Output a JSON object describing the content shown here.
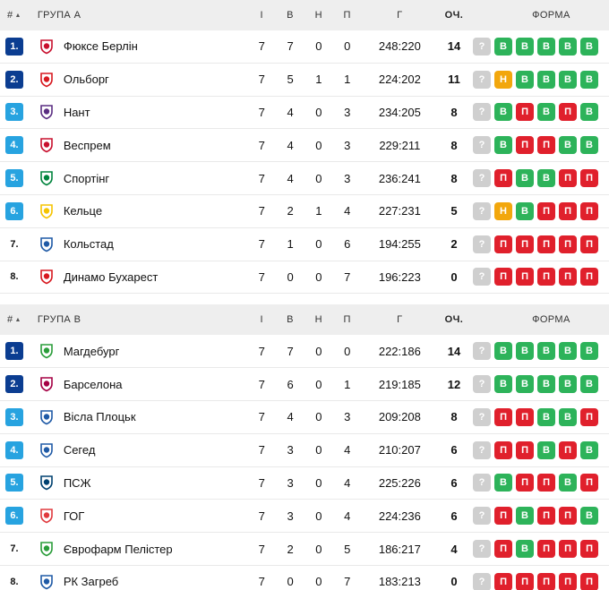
{
  "columns": {
    "pos": "#",
    "played": "І",
    "wins": "В",
    "draws": "Н",
    "losses": "П",
    "goals": "Г",
    "points": "ОЧ.",
    "form": "ФОРМА"
  },
  "groups": [
    {
      "title": "ГРУПА А",
      "rows": [
        {
          "pos": "1.",
          "style": "dark",
          "team": "Фюксе Берлін",
          "logo": "fuchse-logo",
          "logo_color": "#c8102e",
          "p": "7",
          "w": "7",
          "d": "0",
          "l": "0",
          "g": "248:220",
          "pts": "14",
          "form": [
            "?",
            "В",
            "В",
            "В",
            "В",
            "В"
          ]
        },
        {
          "pos": "2.",
          "style": "dark",
          "team": "Ольборг",
          "logo": "aalborg-logo",
          "logo_color": "#d71920",
          "p": "7",
          "w": "5",
          "d": "1",
          "l": "1",
          "g": "224:202",
          "pts": "11",
          "form": [
            "?",
            "Н",
            "В",
            "В",
            "В",
            "В"
          ]
        },
        {
          "pos": "3.",
          "style": "light",
          "team": "Нант",
          "logo": "nantes-logo",
          "logo_color": "#5a2d82",
          "p": "7",
          "w": "4",
          "d": "0",
          "l": "3",
          "g": "234:205",
          "pts": "8",
          "form": [
            "?",
            "В",
            "П",
            "В",
            "П",
            "В"
          ]
        },
        {
          "pos": "4.",
          "style": "light",
          "team": "Веспрем",
          "logo": "veszprem-logo",
          "logo_color": "#c8102e",
          "p": "7",
          "w": "4",
          "d": "0",
          "l": "3",
          "g": "229:211",
          "pts": "8",
          "form": [
            "?",
            "В",
            "П",
            "П",
            "В",
            "В"
          ]
        },
        {
          "pos": "5.",
          "style": "light",
          "team": "Спортінг",
          "logo": "sporting-logo",
          "logo_color": "#00843d",
          "p": "7",
          "w": "4",
          "d": "0",
          "l": "3",
          "g": "236:241",
          "pts": "8",
          "form": [
            "?",
            "П",
            "В",
            "В",
            "П",
            "П"
          ]
        },
        {
          "pos": "6.",
          "style": "light",
          "team": "Кельце",
          "logo": "kielce-logo",
          "logo_color": "#f5c400",
          "p": "7",
          "w": "2",
          "d": "1",
          "l": "4",
          "g": "227:231",
          "pts": "5",
          "form": [
            "?",
            "Н",
            "В",
            "П",
            "П",
            "П"
          ]
        },
        {
          "pos": "7.",
          "style": "plain",
          "team": "Кольстад",
          "logo": "kolstad-logo",
          "logo_color": "#1f5aa6",
          "p": "7",
          "w": "1",
          "d": "0",
          "l": "6",
          "g": "194:255",
          "pts": "2",
          "form": [
            "?",
            "П",
            "П",
            "П",
            "П",
            "П"
          ]
        },
        {
          "pos": "8.",
          "style": "plain",
          "team": "Динамо Бухарест",
          "logo": "dinamo-logo",
          "logo_color": "#d71920",
          "p": "7",
          "w": "0",
          "d": "0",
          "l": "7",
          "g": "196:223",
          "pts": "0",
          "form": [
            "?",
            "П",
            "П",
            "П",
            "П",
            "П"
          ]
        }
      ]
    },
    {
      "title": "ГРУПА B",
      "rows": [
        {
          "pos": "1.",
          "style": "dark",
          "team": "Магдебург",
          "logo": "magdeburg-logo",
          "logo_color": "#2a9d3a",
          "p": "7",
          "w": "7",
          "d": "0",
          "l": "0",
          "g": "222:186",
          "pts": "14",
          "form": [
            "?",
            "В",
            "В",
            "В",
            "В",
            "В"
          ]
        },
        {
          "pos": "2.",
          "style": "dark",
          "team": "Барселона",
          "logo": "barcelona-logo",
          "logo_color": "#a50044",
          "p": "7",
          "w": "6",
          "d": "0",
          "l": "1",
          "g": "219:185",
          "pts": "12",
          "form": [
            "?",
            "В",
            "В",
            "В",
            "В",
            "В"
          ]
        },
        {
          "pos": "3.",
          "style": "light",
          "team": "Вісла Плоцьк",
          "logo": "wisla-logo",
          "logo_color": "#1f5aa6",
          "p": "7",
          "w": "4",
          "d": "0",
          "l": "3",
          "g": "209:208",
          "pts": "8",
          "form": [
            "?",
            "П",
            "П",
            "В",
            "В",
            "П"
          ]
        },
        {
          "pos": "4.",
          "style": "light",
          "team": "Сегед",
          "logo": "szeged-logo",
          "logo_color": "#1f5aa6",
          "p": "7",
          "w": "3",
          "d": "0",
          "l": "4",
          "g": "210:207",
          "pts": "6",
          "form": [
            "?",
            "П",
            "П",
            "В",
            "П",
            "В"
          ]
        },
        {
          "pos": "5.",
          "style": "light",
          "team": "ПСЖ",
          "logo": "psg-logo",
          "logo_color": "#004170",
          "p": "7",
          "w": "3",
          "d": "0",
          "l": "4",
          "g": "225:226",
          "pts": "6",
          "form": [
            "?",
            "В",
            "П",
            "П",
            "В",
            "П"
          ]
        },
        {
          "pos": "6.",
          "style": "light",
          "team": "ГОГ",
          "logo": "gog-logo",
          "logo_color": "#e03a3e",
          "p": "7",
          "w": "3",
          "d": "0",
          "l": "4",
          "g": "224:236",
          "pts": "6",
          "form": [
            "?",
            "П",
            "В",
            "П",
            "П",
            "В"
          ]
        },
        {
          "pos": "7.",
          "style": "plain",
          "team": "Єврофарм Пелістер",
          "logo": "pelister-logo",
          "logo_color": "#2a9d3a",
          "p": "7",
          "w": "2",
          "d": "0",
          "l": "5",
          "g": "186:217",
          "pts": "4",
          "form": [
            "?",
            "П",
            "В",
            "П",
            "П",
            "П"
          ]
        },
        {
          "pos": "8.",
          "style": "plain",
          "team": "РК Загреб",
          "logo": "zagreb-logo",
          "logo_color": "#1f5aa6",
          "p": "7",
          "w": "0",
          "d": "0",
          "l": "7",
          "g": "183:213",
          "pts": "0",
          "form": [
            "?",
            "П",
            "П",
            "П",
            "П",
            "П"
          ]
        }
      ]
    }
  ]
}
